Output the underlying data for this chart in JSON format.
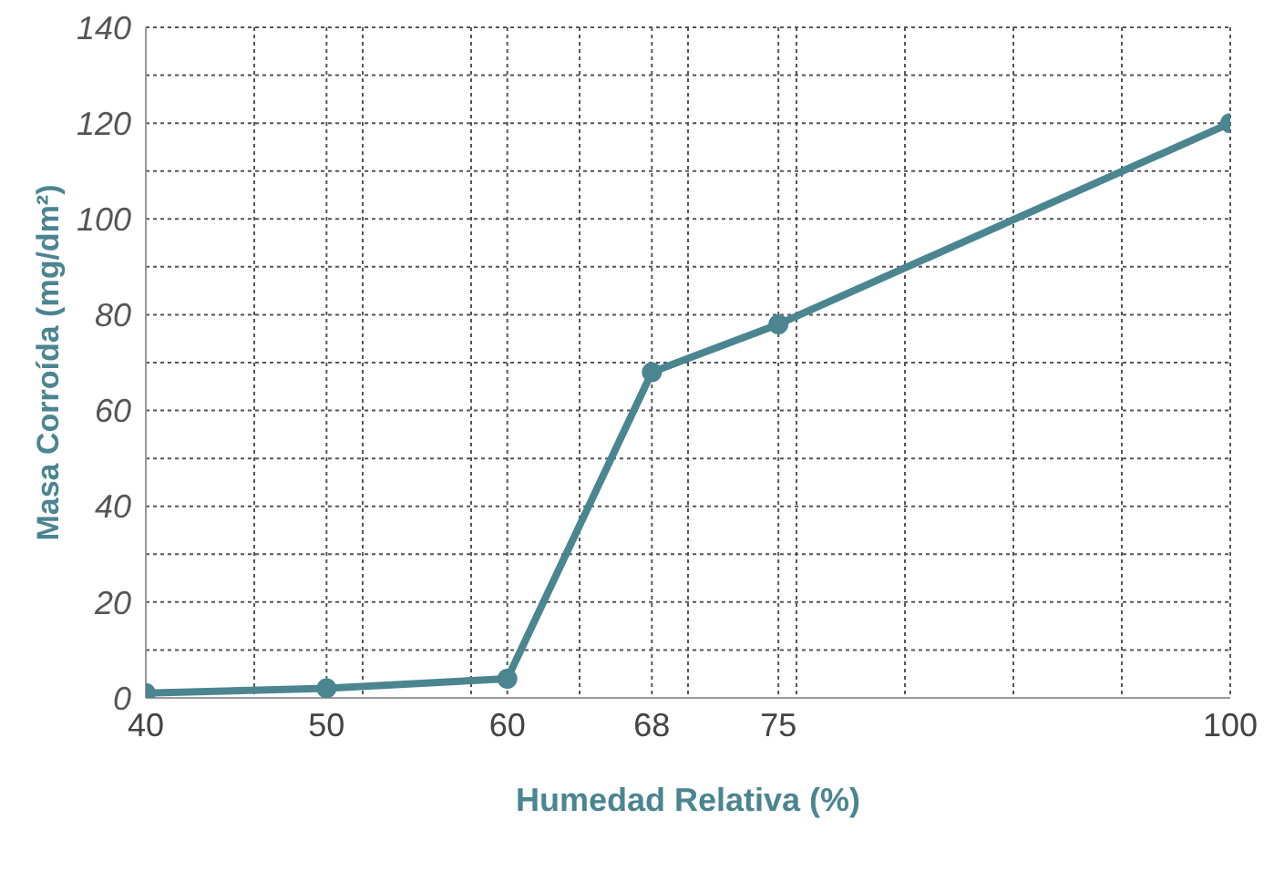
{
  "chart_data": {
    "type": "line",
    "xlabel": "Humedad Relativa (%)",
    "ylabel": "Masa Corroída (mg/dm²)",
    "x": [
      40,
      50,
      60,
      68,
      75,
      100
    ],
    "series": [
      {
        "color": "#4a8590",
        "values": [
          1,
          2,
          4,
          68,
          78,
          120
        ]
      }
    ],
    "xlim": [
      40,
      100
    ],
    "xticks": [
      40,
      {
        "value": 46,
        "label": null
      },
      50,
      {
        "value": 52,
        "label": null
      },
      {
        "value": 58,
        "label": null
      },
      60,
      {
        "value": 64,
        "label": null
      },
      68,
      {
        "value": 70,
        "label": null
      },
      75,
      {
        "value": 76,
        "label": null
      },
      {
        "value": 82,
        "label": null
      },
      {
        "value": 88,
        "label": null
      },
      {
        "value": 94,
        "label": null
      },
      100
    ],
    "ylim": [
      0,
      140
    ],
    "yticks": [
      0,
      {
        "value": 10,
        "label": null
      },
      20,
      {
        "value": 30,
        "label": null
      },
      40,
      {
        "value": 50,
        "label": null
      },
      60,
      {
        "value": 70,
        "label": null
      },
      80,
      {
        "value": 90,
        "label": null
      },
      100,
      {
        "value": 110,
        "label": null
      },
      120,
      {
        "value": 130,
        "label": null
      },
      140
    ],
    "grid": true,
    "marker": "circle",
    "line_style": "solid"
  }
}
